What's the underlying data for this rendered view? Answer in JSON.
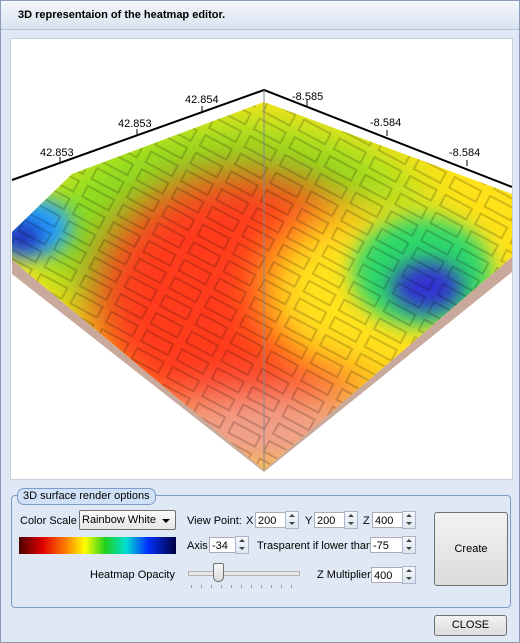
{
  "window": {
    "title": "3D representaion of the heatmap editor."
  },
  "view": {
    "axis_labels": [
      42.853,
      42.853,
      42.854,
      -8.585,
      -8.584,
      -8.584
    ]
  },
  "options": {
    "title": "3D surface render options",
    "color_scale_label": "Color Scale",
    "color_scale": "Rainbow White",
    "view_point_label": "View Point:",
    "x_label": "X",
    "x": 200,
    "y_label": "Y",
    "y": 200,
    "z_label": "Z",
    "z": 400,
    "axis_label": "Axis",
    "axis": -34,
    "transparent_label": "Trasparent if lower than",
    "transparent": -75,
    "opacity_label": "Heatmap Opacity",
    "z_multiplier_label": "Z Multiplier",
    "z_multiplier": 400,
    "create": "Create"
  },
  "close": "CLOSE"
}
